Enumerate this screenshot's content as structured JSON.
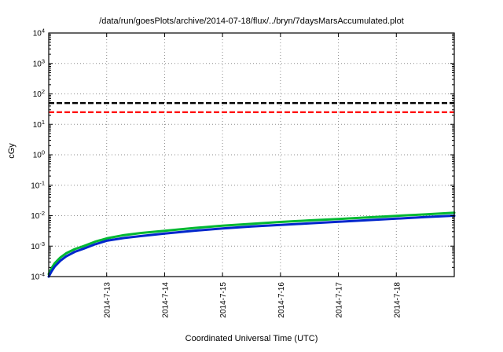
{
  "chart_data": {
    "type": "line",
    "title": "/data/run/goesPlots/archive/2014-07-18/flux/../bryn/7daysMarsAccumulated.plot",
    "xlabel": "Coordinated Universal Time (UTC)",
    "ylabel": "cGy",
    "y_scale": "log",
    "ylim": [
      0.0001,
      10000.0
    ],
    "grid": true,
    "legend": "none",
    "x_range_days": [
      0,
      7
    ],
    "x_ticks": [
      "2014-7-13",
      "2014-7-14",
      "2014-7-15",
      "2014-7-16",
      "2014-7-17",
      "2014-7-18"
    ],
    "x_tick_days": [
      1,
      2,
      3,
      4,
      5,
      6
    ],
    "y_tick_exponents": [
      4,
      3,
      2,
      1,
      0,
      -1,
      -2,
      -3,
      -4
    ],
    "reference_lines": [
      {
        "name": "upper-limit-black",
        "value": 50,
        "color": "#000000",
        "style": "dashed"
      },
      {
        "name": "lower-limit-red",
        "value": 25,
        "color": "#ff0000",
        "style": "dashed"
      }
    ],
    "series": [
      {
        "name": "accumulated-dose-green",
        "color": "#00b832",
        "x": [
          0,
          0.05,
          0.1,
          0.2,
          0.3,
          0.45,
          0.6,
          0.8,
          1.0,
          1.3,
          1.6,
          2.0,
          2.5,
          3.0,
          3.5,
          4.0,
          4.5,
          5.0,
          5.5,
          6.0,
          6.5,
          7.0
        ],
        "y": [
          0.00012,
          0.00019,
          0.00027,
          0.00042,
          0.00058,
          0.0008,
          0.001,
          0.0014,
          0.0018,
          0.0023,
          0.0027,
          0.0032,
          0.0039,
          0.0047,
          0.0054,
          0.0062,
          0.007,
          0.0078,
          0.0088,
          0.0099,
          0.011,
          0.0125
        ]
      },
      {
        "name": "accumulated-dose-blue",
        "color": "#0026cc",
        "x": [
          0,
          0.05,
          0.1,
          0.2,
          0.3,
          0.45,
          0.6,
          0.8,
          1.0,
          1.3,
          1.6,
          2.0,
          2.5,
          3.0,
          3.5,
          4.0,
          4.5,
          5.0,
          5.5,
          6.0,
          6.5,
          7.0
        ],
        "y": [
          0.0001,
          0.00015,
          0.00021,
          0.00033,
          0.00046,
          0.00065,
          0.00082,
          0.00115,
          0.0015,
          0.00185,
          0.00215,
          0.0026,
          0.0032,
          0.0038,
          0.0044,
          0.005,
          0.0056,
          0.0063,
          0.0071,
          0.008,
          0.009,
          0.01
        ]
      }
    ]
  }
}
